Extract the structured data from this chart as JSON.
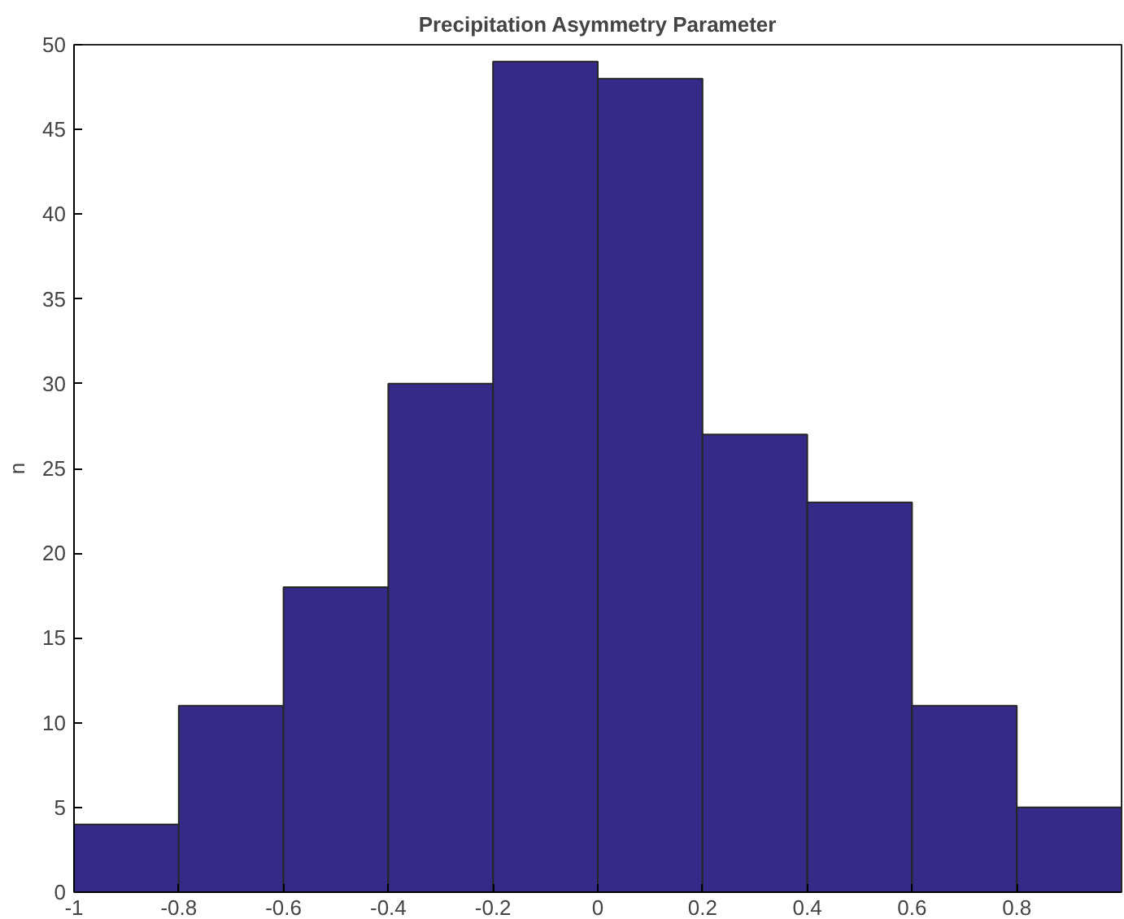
{
  "chart_data": {
    "type": "histogram",
    "title": "Precipitation Asymmetry Parameter",
    "ylabel": "n",
    "bins": [
      -1,
      -0.8,
      -0.6,
      -0.4,
      -0.2,
      0,
      0.2,
      0.4,
      0.6,
      0.8,
      1
    ],
    "values": [
      4,
      11,
      18,
      30,
      49,
      48,
      27,
      23,
      11,
      5
    ],
    "color": "#352a87",
    "xlim": [
      -1,
      1
    ],
    "xticks": [
      -1,
      -0.8,
      -0.6,
      -0.4,
      -0.2,
      0,
      0.2,
      0.4,
      0.6,
      0.8
    ],
    "ylim": [
      0,
      50
    ],
    "yticks": [
      0,
      5,
      10,
      15,
      20,
      25,
      30,
      35,
      40,
      45,
      50
    ],
    "grid": false
  }
}
